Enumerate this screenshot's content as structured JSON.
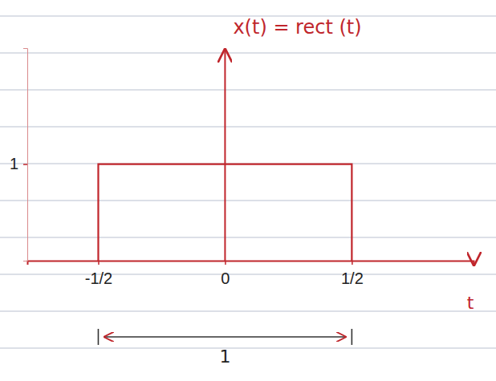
{
  "chart_data": {
    "type": "line",
    "title": "x(t) = rect (t)",
    "x_label": "t",
    "x": [
      -0.5,
      -0.5,
      0.5,
      0.5
    ],
    "values": [
      0,
      1,
      1,
      0
    ],
    "color": "#c0262c",
    "xlim": [
      -0.78,
      0.98
    ],
    "ylim": [
      0,
      2.2
    ],
    "xticks": [
      {
        "value": -0.5,
        "label": "-1/2"
      },
      0,
      {
        "value": 0.5,
        "label": "1/2"
      }
    ],
    "yticks": [
      1
    ],
    "annotations": [
      {
        "label": "1",
        "x_from": -0.5,
        "x_to": 0.5
      }
    ]
  }
}
